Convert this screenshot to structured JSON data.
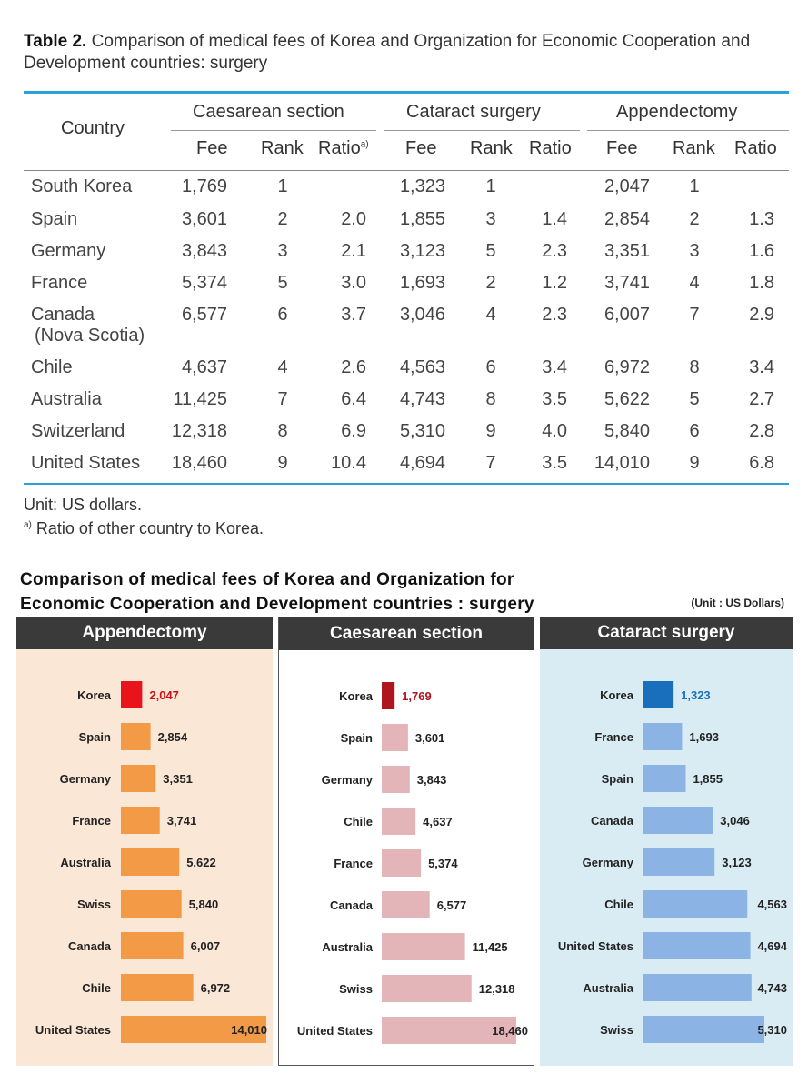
{
  "table": {
    "title_bold": "Table 2.",
    "title_text": " Comparison of medical fees of Korea and Organization for Economic Cooperation and Development countries: surgery",
    "header": {
      "country": "Country",
      "groups": [
        "Caesarean section",
        "Cataract surgery",
        "Appendectomy"
      ],
      "fee": "Fee",
      "rank": "Rank",
      "ratio": "Ratio",
      "ratio_sup": "a)"
    },
    "rows": [
      {
        "country": "South Korea",
        "cells": [
          "1,769",
          "1",
          "",
          "1,323",
          "1",
          "",
          "2,047",
          "1",
          ""
        ]
      },
      {
        "country": "Spain",
        "cells": [
          "3,601",
          "2",
          "2.0",
          "1,855",
          "3",
          "1.4",
          "2,854",
          "2",
          "1.3"
        ]
      },
      {
        "country": "Germany",
        "cells": [
          "3,843",
          "3",
          "2.1",
          "3,123",
          "5",
          "2.3",
          "3,351",
          "3",
          "1.6"
        ]
      },
      {
        "country": "France",
        "cells": [
          "5,374",
          "5",
          "3.0",
          "1,693",
          "2",
          "1.2",
          "3,741",
          "4",
          "1.8"
        ]
      },
      {
        "country": "Canada",
        "country2": "(Nova Scotia)",
        "cells": [
          "6,577",
          "6",
          "3.7",
          "3,046",
          "4",
          "2.3",
          "6,007",
          "7",
          "2.9"
        ]
      },
      {
        "country": "Chile",
        "cells": [
          "4,637",
          "4",
          "2.6",
          "4,563",
          "6",
          "3.4",
          "6,972",
          "8",
          "3.4"
        ]
      },
      {
        "country": "Australia",
        "cells": [
          "11,425",
          "7",
          "6.4",
          "4,743",
          "8",
          "3.5",
          "5,622",
          "5",
          "2.7"
        ]
      },
      {
        "country": "Switzerland",
        "cells": [
          "12,318",
          "8",
          "6.9",
          "5,310",
          "9",
          "4.0",
          "5,840",
          "6",
          "2.8"
        ]
      },
      {
        "country": "United States",
        "cells": [
          "18,460",
          "9",
          "10.4",
          "4,694",
          "7",
          "3.5",
          "14,010",
          "9",
          "6.8"
        ]
      }
    ],
    "notes": {
      "unit": "Unit: US dollars.",
      "footnote_sup": "a)",
      "footnote": " Ratio of other country to Korea."
    }
  },
  "chart": {
    "title_line1": "Comparison of medical fees of Korea and Organization for",
    "title_line2": "Economic Cooperation and Development countries : surgery",
    "unit": "(Unit : US Dollars)"
  },
  "chart_data": [
    {
      "type": "bar",
      "title": "Appendectomy",
      "background": "#fbe7d6",
      "bar_color": "#f39a47",
      "highlight_color": "#e8131b",
      "label_highlight_color": "#d01010",
      "max": 14010,
      "categories": [
        "Korea",
        "Spain",
        "Germany",
        "France",
        "Australia",
        "Swiss",
        "Canada",
        "Chile",
        "United States"
      ],
      "values": [
        2047,
        2854,
        3351,
        3741,
        5622,
        5840,
        6007,
        6972,
        14010
      ],
      "labels": [
        "2,047",
        "2,854",
        "3,351",
        "3,741",
        "5,622",
        "5,840",
        "6,007",
        "6,972",
        "14,010"
      ]
    },
    {
      "type": "bar",
      "title": "Caesarean section",
      "background": "#ffffff",
      "bar_color": "#e3b4b8",
      "highlight_color": "#b0141c",
      "label_highlight_color": "#b0141c",
      "max": 18460,
      "categories": [
        "Korea",
        "Spain",
        "Germany",
        "Chile",
        "France",
        "Canada",
        "Australia",
        "Swiss",
        "United States"
      ],
      "values": [
        1769,
        3601,
        3843,
        4637,
        5374,
        6577,
        11425,
        12318,
        18460
      ],
      "labels": [
        "1,769",
        "3,601",
        "3,843",
        "4,637",
        "5,374",
        "6,577",
        "11,425",
        "12,318",
        "18,460"
      ]
    },
    {
      "type": "bar",
      "title": "Cataract surgery",
      "background": "#d9ecf4",
      "bar_color": "#8bb3e3",
      "highlight_color": "#1a6fbd",
      "label_highlight_color": "#1a6fbd",
      "max": 5310,
      "categories": [
        "Korea",
        "France",
        "Spain",
        "Canada",
        "Germany",
        "Chile",
        "United States",
        "Australia",
        "Swiss"
      ],
      "values": [
        1323,
        1693,
        1855,
        3046,
        3123,
        4563,
        4694,
        4743,
        5310
      ],
      "labels": [
        "1,323",
        "1,693",
        "1,855",
        "3,046",
        "3,123",
        "4,563",
        "4,694",
        "4,743",
        "5,310"
      ]
    }
  ]
}
